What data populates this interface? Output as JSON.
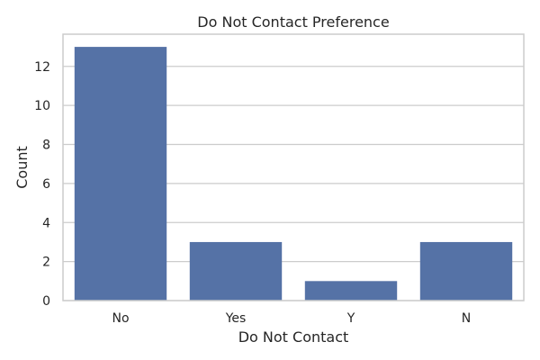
{
  "chart_data": {
    "type": "bar",
    "title": "Do Not Contact Preference",
    "xlabel": "Do Not Contact",
    "ylabel": "Count",
    "categories": [
      "No",
      "Yes",
      "Y",
      "N"
    ],
    "values": [
      13,
      3,
      1,
      3
    ],
    "ylim": [
      0,
      13.65
    ],
    "yticks": [
      0,
      2,
      4,
      6,
      8,
      10,
      12
    ],
    "grid": true,
    "bar_color": "#5572a6",
    "grid_color": "#cccccc",
    "text_color": "#262626"
  }
}
